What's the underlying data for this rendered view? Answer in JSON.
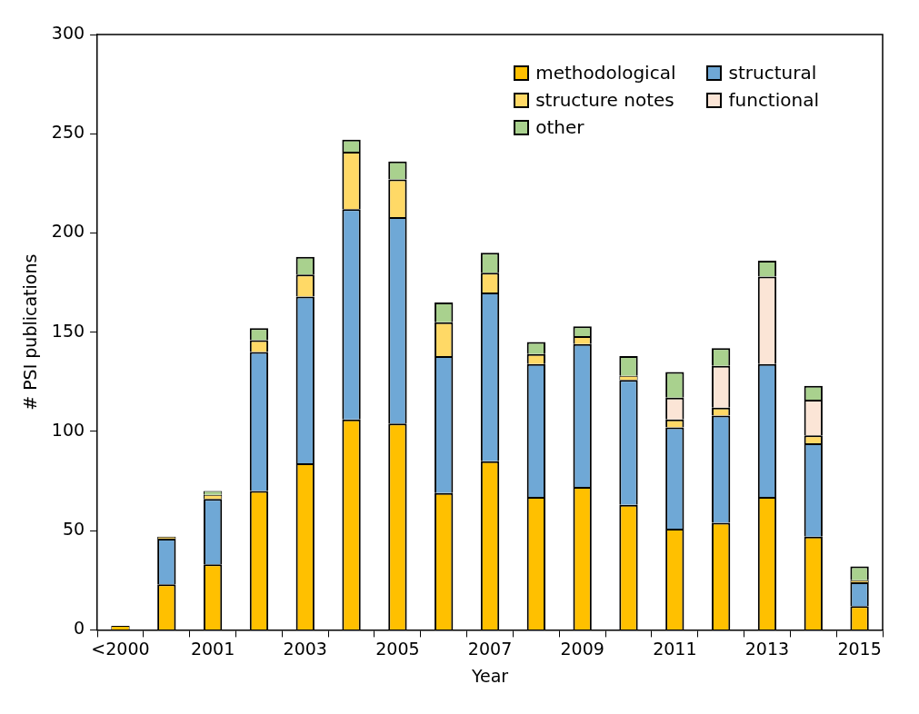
{
  "chart_data": {
    "type": "bar",
    "stacked": true,
    "xlabel": "Year",
    "ylabel": "# PSI publications",
    "categories": [
      "<2000",
      null,
      "2001",
      null,
      "2003",
      null,
      "2005",
      null,
      "2007",
      null,
      "2009",
      null,
      "2011",
      null,
      "2013",
      null,
      "2015"
    ],
    "series": [
      {
        "name": "methodological",
        "color": "#ffc000",
        "values": [
          2,
          23,
          33,
          70,
          84,
          106,
          104,
          69,
          85,
          67,
          72,
          63,
          51,
          54,
          67,
          47,
          12
        ]
      },
      {
        "name": "structural",
        "color": "#6fa8d6",
        "values": [
          null,
          23,
          33,
          70,
          84,
          106,
          104,
          69,
          85,
          67,
          72,
          63,
          51,
          54,
          67,
          47,
          12
        ]
      },
      {
        "name": "structure notes",
        "color": "#ffd966",
        "values": [
          null,
          1,
          2,
          6,
          11,
          29,
          19,
          17,
          10,
          5,
          4,
          2,
          4,
          4,
          null,
          4,
          1
        ]
      },
      {
        "name": "functional",
        "color": "#fbe5d6",
        "values": [
          null,
          null,
          null,
          null,
          null,
          null,
          null,
          null,
          null,
          null,
          null,
          null,
          11,
          21,
          44,
          18,
          null
        ]
      },
      {
        "name": "other",
        "color": "#a9d18e",
        "values": [
          null,
          null,
          2,
          6,
          9,
          6,
          9,
          10,
          10,
          6,
          5,
          10,
          13,
          9,
          8,
          7,
          7
        ]
      }
    ],
    "ylim": [
      0,
      300
    ],
    "yticks": [
      0,
      50,
      100,
      150,
      200,
      250,
      300
    ],
    "grid": false,
    "legend": "top right"
  }
}
